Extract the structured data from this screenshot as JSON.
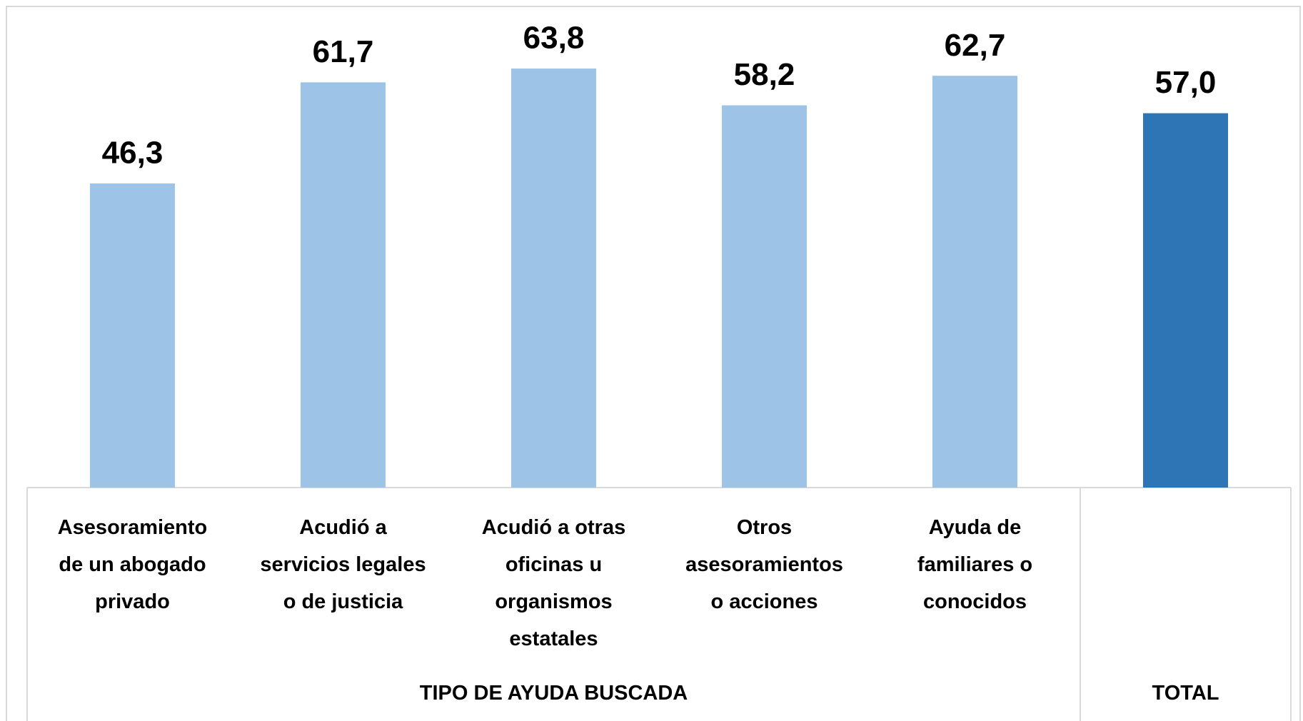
{
  "chart_data": {
    "type": "bar",
    "categories": [
      "Asesoramiento\nde un abogado\nprivado",
      "Acudió a\nservicios legales\no de justicia",
      "Acudió a otras\noficinas u\norganismos\nestatales",
      "Otros\nasesoramientos\no acciones",
      "Ayuda de\nfamiliares o\nconocidos",
      null
    ],
    "values": [
      46.3,
      61.7,
      63.8,
      58.2,
      62.7,
      57.0
    ],
    "value_labels": [
      "46,3",
      "61,7",
      "63,8",
      "58,2",
      "62,7",
      "57,0"
    ],
    "colors": [
      "#9dc3e6",
      "#9dc3e6",
      "#9dc3e6",
      "#9dc3e6",
      "#9dc3e6",
      "#2e75b6"
    ],
    "groups": [
      {
        "label": "TIPO DE AYUDA BUSCADA",
        "span": 5
      },
      {
        "label": "TOTAL",
        "span": 1
      }
    ],
    "ylim": [
      0,
      70
    ]
  }
}
